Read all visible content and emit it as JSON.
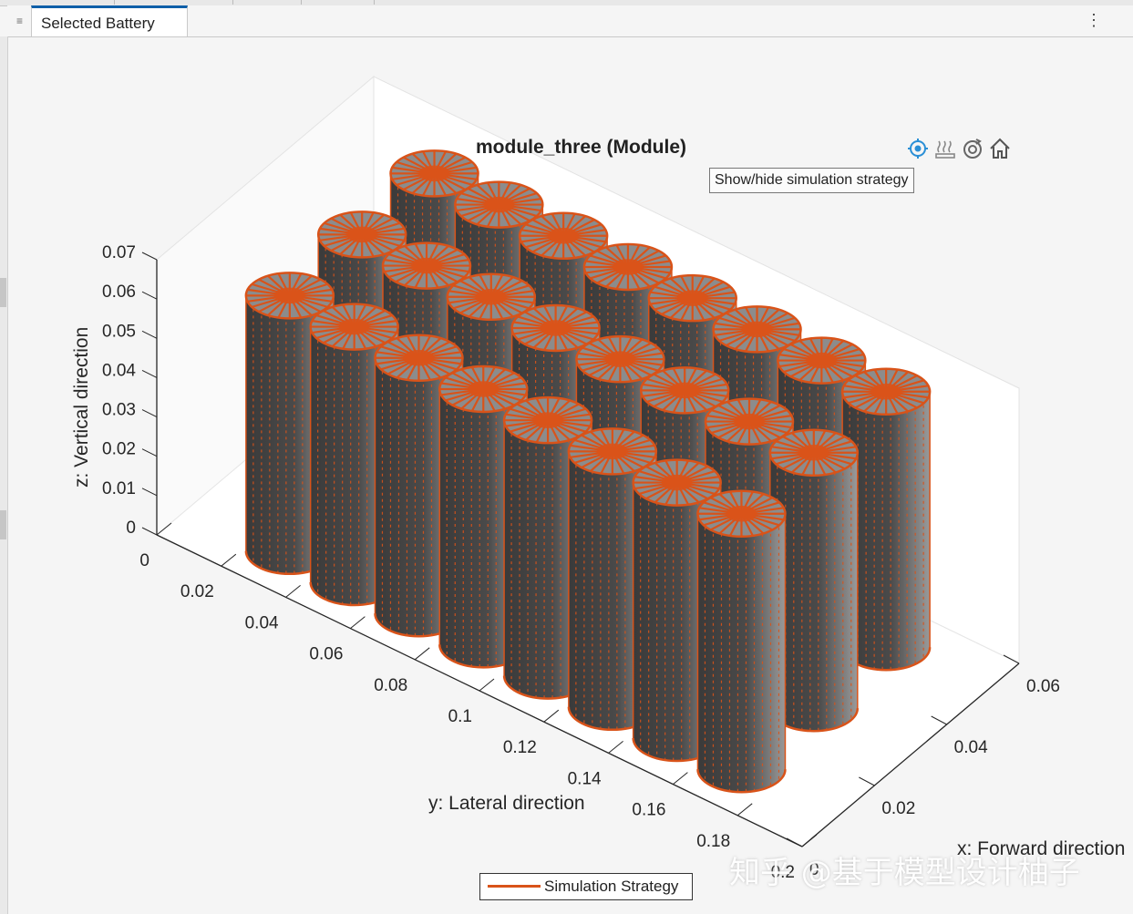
{
  "window": {
    "tab_label": "Selected Battery",
    "menu_icon": "hamburger-icon",
    "more_icon": "kebab-menu-icon"
  },
  "plot": {
    "title": "module_three (Module)",
    "tooltip": "Show/hide simulation strategy",
    "toolbar_icons": [
      "simulation-strategy-icon",
      "heat-icon",
      "rotate-view-icon",
      "home-icon"
    ],
    "legend_label": "Simulation Strategy",
    "accent_color": "#d95319",
    "cell_color": "#4a4a4a",
    "watermark": "知乎 @基于模型设计柚子"
  },
  "chart_data": {
    "type": "3d-surface",
    "title": "module_three (Module)",
    "xlabel": "x: Forward direction",
    "ylabel": "y: Lateral direction",
    "zlabel": "z: Vertical direction",
    "xticks": [
      "0",
      "0.02",
      "0.04",
      "0.06"
    ],
    "yticks": [
      "0",
      "0.02",
      "0.04",
      "0.06",
      "0.08",
      "0.1",
      "0.12",
      "0.14",
      "0.16",
      "0.18",
      "0.2"
    ],
    "zticks": [
      "0",
      "0.01",
      "0.02",
      "0.03",
      "0.04",
      "0.05",
      "0.06",
      "0.07"
    ],
    "xlim": [
      0,
      0.06
    ],
    "ylim": [
      0,
      0.2
    ],
    "zlim": [
      0,
      0.07
    ],
    "legend": [
      "Simulation Strategy"
    ],
    "legend_placement": "bottom-center",
    "grid": true,
    "cells": [
      {
        "x": 0.01,
        "y": 0.03,
        "z": 0.065
      },
      {
        "x": 0.03,
        "y": 0.03,
        "z": 0.065
      },
      {
        "x": 0.05,
        "y": 0.03,
        "z": 0.065
      },
      {
        "x": 0.01,
        "y": 0.05,
        "z": 0.065
      },
      {
        "x": 0.03,
        "y": 0.05,
        "z": 0.065
      },
      {
        "x": 0.05,
        "y": 0.05,
        "z": 0.065
      },
      {
        "x": 0.01,
        "y": 0.07,
        "z": 0.065
      },
      {
        "x": 0.03,
        "y": 0.07,
        "z": 0.065
      },
      {
        "x": 0.05,
        "y": 0.07,
        "z": 0.065
      },
      {
        "x": 0.01,
        "y": 0.09,
        "z": 0.065
      },
      {
        "x": 0.03,
        "y": 0.09,
        "z": 0.065
      },
      {
        "x": 0.05,
        "y": 0.09,
        "z": 0.065
      },
      {
        "x": 0.01,
        "y": 0.11,
        "z": 0.065
      },
      {
        "x": 0.03,
        "y": 0.11,
        "z": 0.065
      },
      {
        "x": 0.05,
        "y": 0.11,
        "z": 0.065
      },
      {
        "x": 0.01,
        "y": 0.13,
        "z": 0.065
      },
      {
        "x": 0.03,
        "y": 0.13,
        "z": 0.065
      },
      {
        "x": 0.05,
        "y": 0.13,
        "z": 0.065
      },
      {
        "x": 0.01,
        "y": 0.15,
        "z": 0.065
      },
      {
        "x": 0.03,
        "y": 0.15,
        "z": 0.065
      },
      {
        "x": 0.05,
        "y": 0.15,
        "z": 0.065
      },
      {
        "x": 0.01,
        "y": 0.17,
        "z": 0.065
      },
      {
        "x": 0.03,
        "y": 0.17,
        "z": 0.065
      },
      {
        "x": 0.05,
        "y": 0.17,
        "z": 0.065
      }
    ]
  }
}
